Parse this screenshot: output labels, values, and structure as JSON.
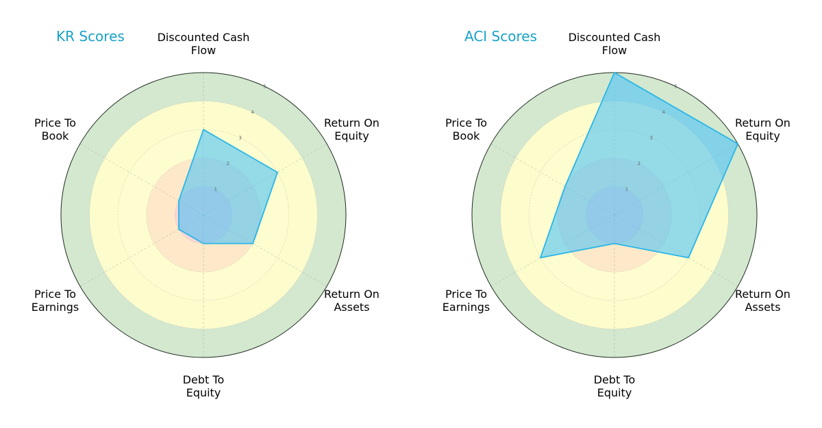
{
  "colors": {
    "title": "#17a2c8",
    "series_fill": "#4fc3f7",
    "series_stroke": "#29b6e8",
    "band_1": "#f9d5d5",
    "band_2": "#fde9c9",
    "band_3": "#fefdd0",
    "band_4": "#fdfccd",
    "band_5": "#d3e8cf",
    "outer_ring": "#1e2a1e",
    "grid": "#9a9a9a"
  },
  "chart_data": [
    {
      "type": "radar",
      "title": "KR Scores",
      "axes": [
        [
          "Discounted Cash",
          "Flow"
        ],
        [
          "Return On",
          "Equity"
        ],
        [
          "Return On",
          "Assets"
        ],
        [
          "Debt To",
          "Equity"
        ],
        [
          "Price To",
          "Earnings"
        ],
        [
          "Price To",
          "Book"
        ]
      ],
      "values": [
        3,
        3,
        2,
        1,
        1,
        1
      ],
      "r_ticks": [
        "1",
        "2",
        "3",
        "4",
        "5"
      ],
      "rlim": [
        0,
        5
      ],
      "grid": true
    },
    {
      "type": "radar",
      "title": "ACI Scores",
      "axes": [
        [
          "Discounted Cash",
          "Flow"
        ],
        [
          "Return On",
          "Equity"
        ],
        [
          "Return On",
          "Assets"
        ],
        [
          "Debt To",
          "Equity"
        ],
        [
          "Price To",
          "Earnings"
        ],
        [
          "Price To",
          "Book"
        ]
      ],
      "values": [
        5,
        5,
        3,
        1,
        3,
        2
      ],
      "r_ticks": [
        "1",
        "2",
        "3",
        "4",
        "5"
      ],
      "rlim": [
        0,
        5
      ],
      "grid": true
    }
  ]
}
